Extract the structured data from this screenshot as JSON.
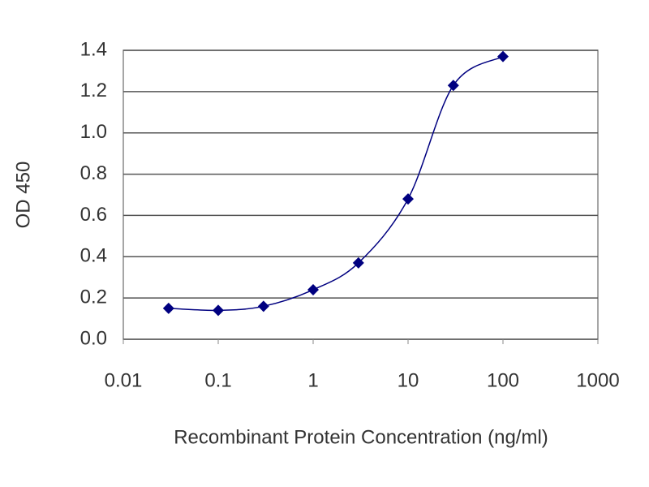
{
  "chart_data": {
    "type": "scatter",
    "x_label": "Recombinant Protein Concentration (ng/ml)",
    "y_label": "OD 450",
    "x": [
      0.03,
      0.1,
      0.3,
      1,
      3,
      10,
      30,
      100
    ],
    "values": [
      0.15,
      0.14,
      0.16,
      0.24,
      0.37,
      0.68,
      1.23,
      1.37
    ],
    "color": "#000080",
    "x_log": true,
    "grid": true,
    "xlim": [
      0.01,
      1000
    ],
    "xticks": [
      0.01,
      0.1,
      1,
      10,
      100,
      1000
    ],
    "ylim": [
      0,
      1.4
    ],
    "yticks": [
      {
        "value": 0,
        "label": "0.0"
      },
      0.2,
      0.4,
      0.6,
      0.8,
      {
        "value": 1,
        "label": "1.0"
      },
      1.2,
      1.4
    ]
  }
}
